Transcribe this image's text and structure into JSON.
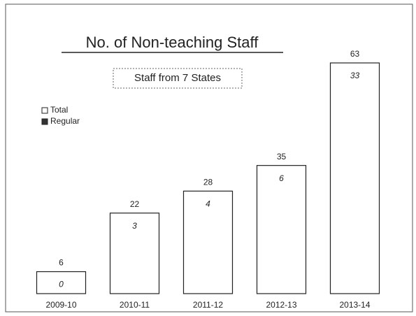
{
  "chart_data": {
    "type": "bar",
    "title": "No. of Non-teaching Staff",
    "subtitle": "Staff from 7 States",
    "categories": [
      "2009-10",
      "2010-11",
      "2011-12",
      "2012-13",
      "2013-14"
    ],
    "series": [
      {
        "name": "Total",
        "color": "#ffffff",
        "values": [
          6,
          22,
          28,
          35,
          63
        ]
      },
      {
        "name": "Regular",
        "color": "#333333",
        "values": [
          0,
          3,
          4,
          6,
          33
        ]
      }
    ],
    "ylim": [
      0,
      63
    ],
    "legend": "left"
  }
}
